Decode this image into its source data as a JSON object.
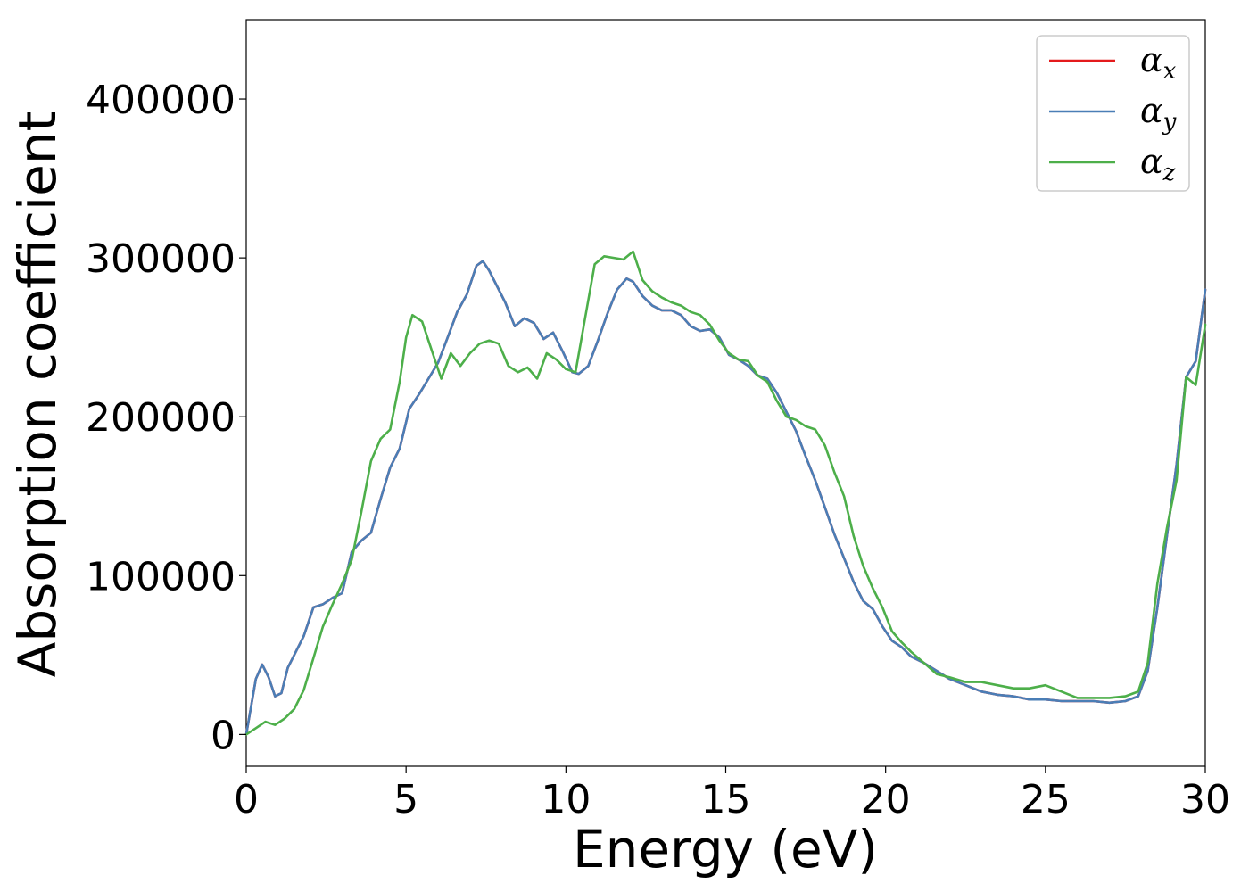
{
  "chart_data": {
    "type": "line",
    "xlabel": "Energy (eV)",
    "ylabel": "Absorption coefficient",
    "xlim": [
      0,
      30
    ],
    "ylim": [
      -20000,
      450000
    ],
    "xticks": [
      0,
      5,
      10,
      15,
      20,
      25,
      30
    ],
    "yticks": [
      0,
      100000,
      200000,
      300000,
      400000
    ],
    "grid": false,
    "legend_position": "top-right",
    "series": [
      {
        "name": "αx",
        "legend_base": "α",
        "legend_sub": "x",
        "color": "#e41a1c",
        "x": [
          0,
          0.3,
          0.5,
          0.7,
          0.9,
          1.1,
          1.3,
          1.5,
          1.8,
          2.1,
          2.4,
          2.7,
          3.0,
          3.3,
          3.6,
          3.9,
          4.2,
          4.5,
          4.8,
          5.1,
          5.4,
          5.7,
          6.0,
          6.3,
          6.6,
          6.9,
          7.2,
          7.4,
          7.6,
          7.8,
          8.1,
          8.4,
          8.7,
          9.0,
          9.3,
          9.6,
          9.9,
          10.2,
          10.4,
          10.7,
          11.0,
          11.3,
          11.6,
          11.9,
          12.1,
          12.4,
          12.7,
          13.0,
          13.3,
          13.6,
          13.9,
          14.2,
          14.5,
          14.8,
          15.1,
          15.4,
          15.7,
          16.0,
          16.3,
          16.6,
          16.9,
          17.2,
          17.5,
          17.8,
          18.1,
          18.4,
          18.7,
          19.0,
          19.3,
          19.6,
          19.9,
          20.2,
          20.5,
          20.8,
          21.2,
          21.6,
          22.0,
          22.5,
          23.0,
          23.5,
          24.0,
          24.5,
          25.0,
          25.5,
          26.0,
          26.5,
          27.0,
          27.5,
          27.9,
          28.2,
          28.5,
          28.8,
          29.1,
          29.4,
          29.7,
          30.0
        ],
        "y": [
          0,
          35000,
          44000,
          36000,
          24000,
          26000,
          42000,
          50000,
          62000,
          80000,
          82000,
          86000,
          89000,
          115000,
          122000,
          127000,
          148000,
          168000,
          180000,
          205000,
          214000,
          224000,
          234000,
          250000,
          266000,
          277000,
          295000,
          298000,
          292000,
          284000,
          272000,
          257000,
          262000,
          259000,
          249000,
          253000,
          241000,
          228000,
          227000,
          232000,
          248000,
          265000,
          280000,
          287000,
          285000,
          276000,
          270000,
          267000,
          267000,
          264000,
          257000,
          254000,
          255000,
          250000,
          239000,
          236000,
          232000,
          226000,
          224000,
          215000,
          203000,
          191000,
          175000,
          160000,
          143000,
          126000,
          111000,
          96000,
          84000,
          79000,
          68000,
          59000,
          55000,
          49000,
          45000,
          40000,
          35000,
          31000,
          27000,
          25000,
          24000,
          22000,
          22000,
          21000,
          21000,
          21000,
          20000,
          21000,
          24000,
          40000,
          80000,
          125000,
          170000,
          225000,
          235000,
          280000
        ]
      },
      {
        "name": "αy",
        "legend_base": "α",
        "legend_sub": "y",
        "color": "#4a7eb6",
        "x": [
          0,
          0.3,
          0.5,
          0.7,
          0.9,
          1.1,
          1.3,
          1.5,
          1.8,
          2.1,
          2.4,
          2.7,
          3.0,
          3.3,
          3.6,
          3.9,
          4.2,
          4.5,
          4.8,
          5.1,
          5.4,
          5.7,
          6.0,
          6.3,
          6.6,
          6.9,
          7.2,
          7.4,
          7.6,
          7.8,
          8.1,
          8.4,
          8.7,
          9.0,
          9.3,
          9.6,
          9.9,
          10.2,
          10.4,
          10.7,
          11.0,
          11.3,
          11.6,
          11.9,
          12.1,
          12.4,
          12.7,
          13.0,
          13.3,
          13.6,
          13.9,
          14.2,
          14.5,
          14.8,
          15.1,
          15.4,
          15.7,
          16.0,
          16.3,
          16.6,
          16.9,
          17.2,
          17.5,
          17.8,
          18.1,
          18.4,
          18.7,
          19.0,
          19.3,
          19.6,
          19.9,
          20.2,
          20.5,
          20.8,
          21.2,
          21.6,
          22.0,
          22.5,
          23.0,
          23.5,
          24.0,
          24.5,
          25.0,
          25.5,
          26.0,
          26.5,
          27.0,
          27.5,
          27.9,
          28.2,
          28.5,
          28.8,
          29.1,
          29.4,
          29.7,
          30.0
        ],
        "y": [
          0,
          35000,
          44000,
          36000,
          24000,
          26000,
          42000,
          50000,
          62000,
          80000,
          82000,
          86000,
          89000,
          115000,
          122000,
          127000,
          148000,
          168000,
          180000,
          205000,
          214000,
          224000,
          234000,
          250000,
          266000,
          277000,
          295000,
          298000,
          292000,
          284000,
          272000,
          257000,
          262000,
          259000,
          249000,
          253000,
          241000,
          228000,
          227000,
          232000,
          248000,
          265000,
          280000,
          287000,
          285000,
          276000,
          270000,
          267000,
          267000,
          264000,
          257000,
          254000,
          255000,
          250000,
          239000,
          236000,
          232000,
          226000,
          224000,
          215000,
          203000,
          191000,
          175000,
          160000,
          143000,
          126000,
          111000,
          96000,
          84000,
          79000,
          68000,
          59000,
          55000,
          49000,
          45000,
          40000,
          35000,
          31000,
          27000,
          25000,
          24000,
          22000,
          22000,
          21000,
          21000,
          21000,
          20000,
          21000,
          24000,
          40000,
          80000,
          125000,
          170000,
          225000,
          235000,
          280000
        ]
      },
      {
        "name": "αz",
        "legend_base": "α",
        "legend_sub": "z",
        "color": "#4daf4a",
        "x": [
          0,
          0.3,
          0.6,
          0.9,
          1.2,
          1.5,
          1.8,
          2.1,
          2.4,
          2.7,
          3.0,
          3.3,
          3.6,
          3.9,
          4.2,
          4.5,
          4.8,
          5.0,
          5.2,
          5.5,
          5.8,
          6.1,
          6.4,
          6.7,
          7.0,
          7.3,
          7.6,
          7.9,
          8.2,
          8.5,
          8.8,
          9.1,
          9.4,
          9.7,
          10.0,
          10.3,
          10.6,
          10.9,
          11.2,
          11.5,
          11.8,
          12.1,
          12.4,
          12.7,
          13.0,
          13.3,
          13.6,
          13.9,
          14.2,
          14.5,
          14.8,
          15.1,
          15.4,
          15.7,
          16.0,
          16.3,
          16.6,
          16.9,
          17.2,
          17.5,
          17.8,
          18.1,
          18.4,
          18.7,
          19.0,
          19.3,
          19.6,
          19.9,
          20.2,
          20.5,
          20.8,
          21.2,
          21.6,
          22.0,
          22.5,
          23.0,
          23.5,
          24.0,
          24.5,
          25.0,
          25.5,
          26.0,
          26.5,
          27.0,
          27.5,
          27.9,
          28.2,
          28.5,
          28.8,
          29.1,
          29.4,
          29.7,
          30.0
        ],
        "y": [
          0,
          4000,
          8000,
          6000,
          10000,
          16000,
          28000,
          48000,
          68000,
          82000,
          95000,
          110000,
          140000,
          172000,
          186000,
          192000,
          222000,
          250000,
          264000,
          260000,
          242000,
          224000,
          240000,
          232000,
          240000,
          246000,
          248000,
          246000,
          232000,
          228000,
          231000,
          224000,
          240000,
          236000,
          230000,
          228000,
          262000,
          296000,
          301000,
          300000,
          299000,
          304000,
          286000,
          279000,
          275000,
          272000,
          270000,
          266000,
          264000,
          258000,
          248000,
          240000,
          236000,
          235000,
          226000,
          222000,
          210000,
          200000,
          198000,
          194000,
          192000,
          182000,
          165000,
          150000,
          125000,
          106000,
          92000,
          80000,
          65000,
          58000,
          52000,
          45000,
          38000,
          36000,
          33000,
          33000,
          31000,
          29000,
          29000,
          31000,
          27000,
          23000,
          23000,
          23000,
          24000,
          27000,
          45000,
          95000,
          130000,
          160000,
          225000,
          220000,
          258000
        ]
      }
    ]
  }
}
